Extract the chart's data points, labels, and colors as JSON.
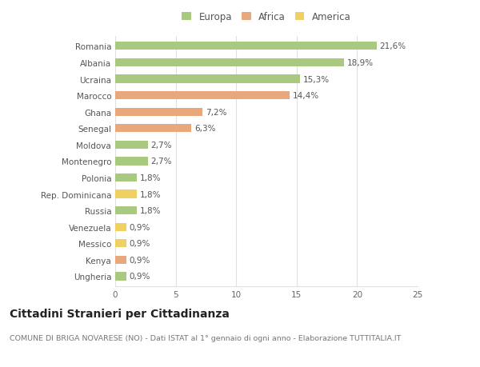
{
  "categories": [
    "Romania",
    "Albania",
    "Ucraina",
    "Marocco",
    "Ghana",
    "Senegal",
    "Moldova",
    "Montenegro",
    "Polonia",
    "Rep. Dominicana",
    "Russia",
    "Venezuela",
    "Messico",
    "Kenya",
    "Ungheria"
  ],
  "values": [
    21.6,
    18.9,
    15.3,
    14.4,
    7.2,
    6.3,
    2.7,
    2.7,
    1.8,
    1.8,
    1.8,
    0.9,
    0.9,
    0.9,
    0.9
  ],
  "labels": [
    "21,6%",
    "18,9%",
    "15,3%",
    "14,4%",
    "7,2%",
    "6,3%",
    "2,7%",
    "2,7%",
    "1,8%",
    "1,8%",
    "1,8%",
    "0,9%",
    "0,9%",
    "0,9%",
    "0,9%"
  ],
  "continents": [
    "Europa",
    "Europa",
    "Europa",
    "Africa",
    "Africa",
    "Africa",
    "Europa",
    "Europa",
    "Europa",
    "America",
    "Europa",
    "America",
    "America",
    "Africa",
    "Europa"
  ],
  "colors": {
    "Europa": "#a8c97f",
    "Africa": "#e8a87c",
    "America": "#f0d060"
  },
  "xlim": [
    0,
    25
  ],
  "xticks": [
    0,
    5,
    10,
    15,
    20,
    25
  ],
  "title": "Cittadini Stranieri per Cittadinanza",
  "subtitle": "COMUNE DI BRIGA NOVARESE (NO) - Dati ISTAT al 1° gennaio di ogni anno - Elaborazione TUTTITALIA.IT",
  "background_color": "#ffffff",
  "grid_color": "#e0e0e0",
  "bar_height": 0.5,
  "label_fontsize": 7.5,
  "title_fontsize": 10,
  "subtitle_fontsize": 6.8,
  "ytick_fontsize": 7.5,
  "xtick_fontsize": 7.5,
  "legend_fontsize": 8.5
}
